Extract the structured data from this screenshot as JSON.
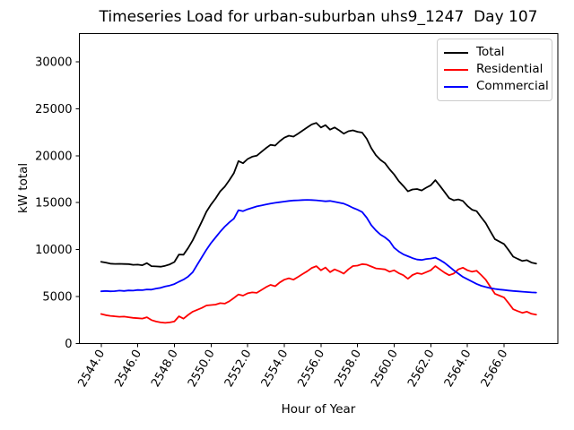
{
  "title": "Timeseries Load for urban-suburban uhs9_1247  Day 107",
  "axes": {
    "xlabel": "Hour of Year",
    "ylabel": "kW total"
  },
  "legend": {
    "position": "upper-right",
    "items": [
      {
        "label": "Total",
        "color": "#000000"
      },
      {
        "label": "Residential",
        "color": "#ff0000"
      },
      {
        "label": "Commercial",
        "color": "#0000ff"
      }
    ]
  },
  "chart_data": {
    "type": "line",
    "title": "Timeseries Load for urban-suburban uhs9_1247  Day 107",
    "xlabel": "Hour of Year",
    "ylabel": "kW total",
    "grid": false,
    "legend_position": "upper right",
    "x_start": 2544.0,
    "x_step": 0.25,
    "n_points": 96,
    "xlim": [
      2542.8125,
      2568.9375
    ],
    "ylim": [
      0,
      33000
    ],
    "xticks": [
      2544,
      2546,
      2548,
      2550,
      2552,
      2554,
      2556,
      2558,
      2560,
      2562,
      2564,
      2566
    ],
    "xtick_labels": [
      "2544.0",
      "2546.0",
      "2548.0",
      "2550.0",
      "2552.0",
      "2554.0",
      "2556.0",
      "2558.0",
      "2560.0",
      "2562.0",
      "2564.0",
      "2566.0"
    ],
    "yticks": [
      0,
      5000,
      10000,
      15000,
      20000,
      25000,
      30000
    ],
    "ytick_labels": [
      "0",
      "5000",
      "10000",
      "15000",
      "20000",
      "25000",
      "30000"
    ],
    "series": [
      {
        "name": "Total",
        "color": "#000000",
        "values": [
          8710,
          8620,
          8510,
          8480,
          8490,
          8470,
          8460,
          8380,
          8400,
          8340,
          8560,
          8240,
          8210,
          8180,
          8280,
          8430,
          8680,
          9480,
          9460,
          10180,
          11000,
          12000,
          13000,
          14050,
          14800,
          15450,
          16200,
          16700,
          17400,
          18150,
          19430,
          19200,
          19650,
          19900,
          20000,
          20400,
          20800,
          21150,
          21080,
          21550,
          21920,
          22130,
          22030,
          22350,
          22680,
          23000,
          23330,
          23490,
          23000,
          23250,
          22780,
          23000,
          22700,
          22350,
          22600,
          22700,
          22550,
          22460,
          21800,
          20800,
          20050,
          19550,
          19200,
          18550,
          18000,
          17300,
          16780,
          16200,
          16400,
          16450,
          16300,
          16600,
          16850,
          17400,
          16800,
          16150,
          15480,
          15250,
          15350,
          15180,
          14650,
          14250,
          14100,
          13450,
          12820,
          11950,
          11120,
          10850,
          10600,
          9950,
          9250,
          9010,
          8790,
          8880,
          8620,
          8510
        ]
      },
      {
        "name": "Residential",
        "color": "#ff0000",
        "values": [
          3150,
          3020,
          2950,
          2900,
          2850,
          2870,
          2800,
          2740,
          2700,
          2660,
          2800,
          2500,
          2350,
          2250,
          2200,
          2250,
          2350,
          2900,
          2650,
          3050,
          3400,
          3600,
          3800,
          4050,
          4100,
          4150,
          4300,
          4250,
          4500,
          4850,
          5230,
          5100,
          5350,
          5450,
          5400,
          5700,
          6000,
          6250,
          6100,
          6500,
          6800,
          6950,
          6800,
          7100,
          7400,
          7700,
          8050,
          8240,
          7800,
          8100,
          7600,
          7900,
          7700,
          7450,
          7900,
          8250,
          8300,
          8460,
          8400,
          8200,
          8000,
          7950,
          7900,
          7650,
          7800,
          7500,
          7280,
          6900,
          7300,
          7500,
          7400,
          7600,
          7800,
          8250,
          7900,
          7550,
          7280,
          7450,
          7900,
          8080,
          7800,
          7650,
          7750,
          7300,
          6800,
          6050,
          5300,
          5100,
          4900,
          4300,
          3650,
          3450,
          3270,
          3400,
          3170,
          3080
        ]
      },
      {
        "name": "Commercial",
        "color": "#0000ff",
        "values": [
          5560,
          5600,
          5560,
          5580,
          5640,
          5600,
          5660,
          5640,
          5700,
          5680,
          5760,
          5740,
          5860,
          5930,
          6080,
          6180,
          6330,
          6580,
          6810,
          7130,
          7600,
          8400,
          9200,
          10000,
          10700,
          11300,
          11900,
          12450,
          12900,
          13300,
          14200,
          14100,
          14300,
          14450,
          14600,
          14700,
          14800,
          14900,
          14980,
          15050,
          15120,
          15180,
          15230,
          15250,
          15280,
          15300,
          15280,
          15250,
          15200,
          15150,
          15180,
          15100,
          15000,
          14900,
          14700,
          14450,
          14250,
          14000,
          13400,
          12600,
          12050,
          11600,
          11300,
          10900,
          10200,
          9800,
          9500,
          9300,
          9100,
          8950,
          8900,
          9000,
          9050,
          9150,
          8900,
          8600,
          8200,
          7800,
          7450,
          7100,
          6850,
          6600,
          6350,
          6150,
          6020,
          5900,
          5820,
          5750,
          5700,
          5650,
          5600,
          5560,
          5520,
          5480,
          5450,
          5430
        ]
      }
    ]
  }
}
